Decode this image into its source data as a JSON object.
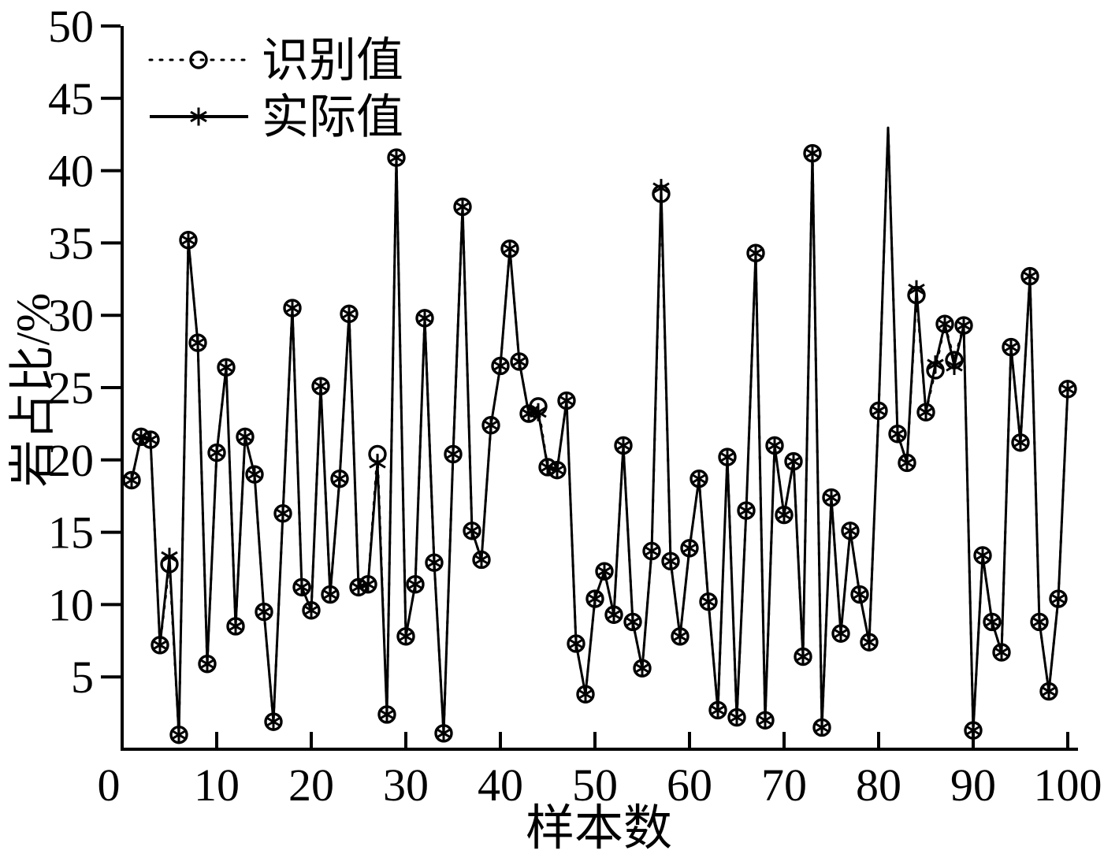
{
  "figure": {
    "background": "#ffffff",
    "foreground": "#000000"
  },
  "legend": {
    "items": [
      {
        "label": "识别值",
        "marker": "circle",
        "linestyle": "dotted"
      },
      {
        "label": "实际值",
        "marker": "asterisk",
        "linestyle": "solid"
      }
    ]
  },
  "chart_data": {
    "type": "line",
    "title": "",
    "xlabel": "样本数",
    "ylabel": "岩占比/%",
    "xlim": [
      0,
      100
    ],
    "ylim": [
      0,
      50
    ],
    "x_range": [
      1,
      100
    ],
    "n_samples": 100,
    "xticks": [
      0,
      10,
      20,
      30,
      40,
      50,
      60,
      70,
      80,
      90,
      100
    ],
    "yticks": [
      5,
      10,
      15,
      20,
      25,
      30,
      35,
      40,
      45,
      50
    ],
    "grid": false,
    "legend_position": "top-left-inside",
    "line_color": "#000000",
    "no_marker_x": [
      81
    ],
    "series": [
      {
        "name": "识别值",
        "marker": "circle",
        "linestyle": "dotted",
        "values": [
          18.6,
          21.6,
          21.4,
          7.2,
          12.8,
          1.0,
          35.2,
          28.1,
          5.9,
          20.5,
          26.4,
          8.5,
          21.6,
          19.0,
          9.5,
          1.9,
          16.3,
          30.5,
          11.2,
          9.6,
          25.1,
          10.7,
          18.7,
          30.1,
          11.2,
          11.4,
          20.4,
          2.4,
          40.9,
          7.8,
          11.4,
          29.8,
          12.9,
          1.1,
          20.4,
          37.5,
          15.1,
          13.1,
          22.4,
          26.5,
          34.6,
          26.8,
          23.2,
          23.7,
          19.5,
          19.3,
          24.1,
          7.3,
          3.8,
          10.4,
          12.3,
          9.3,
          21.0,
          8.8,
          5.6,
          13.7,
          38.4,
          13.0,
          7.8,
          13.9,
          18.7,
          10.2,
          2.7,
          20.2,
          2.2,
          16.5,
          34.3,
          2.0,
          21.0,
          16.2,
          19.9,
          6.4,
          41.2,
          1.5,
          17.4,
          8.0,
          15.1,
          10.7,
          7.4,
          23.4,
          43.0,
          21.8,
          19.8,
          31.4,
          23.3,
          26.2,
          29.4,
          26.9,
          29.3,
          1.3,
          13.4,
          8.8,
          6.7,
          27.8,
          21.2,
          32.7,
          8.8,
          4.0,
          10.4,
          24.9
        ]
      },
      {
        "name": "实际值",
        "marker": "asterisk",
        "linestyle": "solid",
        "values": [
          18.6,
          21.6,
          21.4,
          7.2,
          13.3,
          1.0,
          35.2,
          28.1,
          5.9,
          20.5,
          26.4,
          8.5,
          21.6,
          19.0,
          9.5,
          1.9,
          16.3,
          30.5,
          11.2,
          9.6,
          25.1,
          10.7,
          18.7,
          30.1,
          11.2,
          11.4,
          19.8,
          2.4,
          40.9,
          7.8,
          11.4,
          29.8,
          12.9,
          1.1,
          20.4,
          37.5,
          15.1,
          13.1,
          22.4,
          26.5,
          34.6,
          26.8,
          23.2,
          23.3,
          19.5,
          19.3,
          24.1,
          7.3,
          3.8,
          10.4,
          12.3,
          9.3,
          21.0,
          8.8,
          5.6,
          13.7,
          38.8,
          13.0,
          7.8,
          13.9,
          18.7,
          10.2,
          2.7,
          20.2,
          2.2,
          16.5,
          34.3,
          2.0,
          21.0,
          16.2,
          19.9,
          6.4,
          41.2,
          1.5,
          17.4,
          8.0,
          15.1,
          10.7,
          7.4,
          23.4,
          43.0,
          21.8,
          19.8,
          31.8,
          23.3,
          26.6,
          29.4,
          26.5,
          29.3,
          1.3,
          13.4,
          8.8,
          6.7,
          27.8,
          21.2,
          32.7,
          8.8,
          4.0,
          10.4,
          24.9
        ]
      }
    ]
  }
}
